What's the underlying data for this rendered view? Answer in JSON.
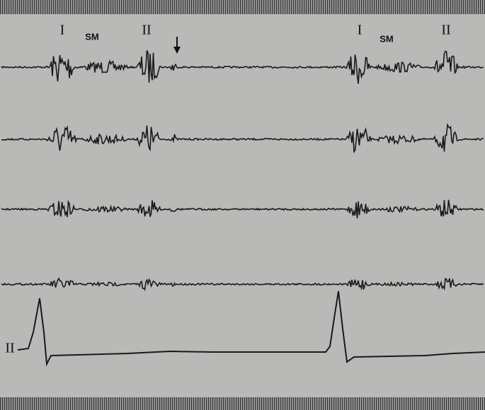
{
  "annotations": [
    "I",
    "SM",
    "II",
    "I",
    "SM",
    "II"
  ],
  "ecg_lead": "II"
}
